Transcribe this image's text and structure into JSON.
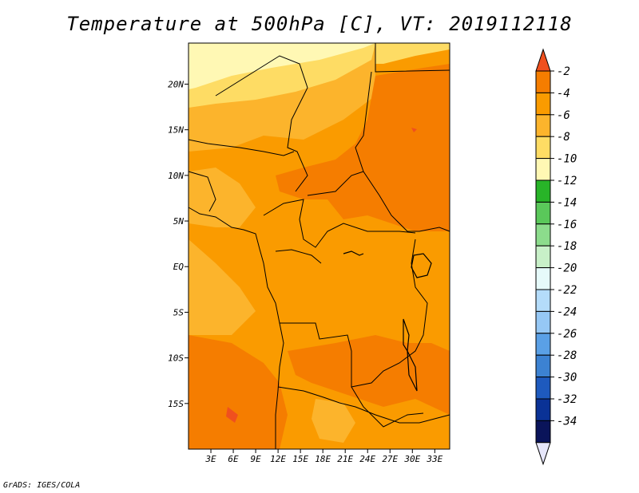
{
  "title": "Temperature at 500hPa [C], VT: 2019112118",
  "credit": "GrADS: IGES/COLA",
  "map": {
    "lon_range": [
      0,
      35
    ],
    "lat_range": [
      -20,
      24.5
    ],
    "lat_ticks": [
      {
        "value": 20,
        "label": "20N"
      },
      {
        "value": 15,
        "label": "15N"
      },
      {
        "value": 10,
        "label": "10N"
      },
      {
        "value": 5,
        "label": "5N"
      },
      {
        "value": 0,
        "label": "EQ"
      },
      {
        "value": -5,
        "label": "5S"
      },
      {
        "value": -10,
        "label": "10S"
      },
      {
        "value": -15,
        "label": "15S"
      }
    ],
    "lon_ticks": [
      {
        "value": 3,
        "label": "3E"
      },
      {
        "value": 6,
        "label": "6E"
      },
      {
        "value": 9,
        "label": "9E"
      },
      {
        "value": 12,
        "label": "12E"
      },
      {
        "value": 15,
        "label": "15E"
      },
      {
        "value": 18,
        "label": "18E"
      },
      {
        "value": 21,
        "label": "21E"
      },
      {
        "value": 24,
        "label": "24E"
      },
      {
        "value": 27,
        "label": "27E"
      },
      {
        "value": 30,
        "label": "30E"
      },
      {
        "value": 33,
        "label": "33E"
      }
    ]
  },
  "colorbar": {
    "labels": [
      "-2",
      "-4",
      "-6",
      "-8",
      "-10",
      "-12",
      "-14",
      "-16",
      "-18",
      "-20",
      "-22",
      "-24",
      "-26",
      "-28",
      "-30",
      "-32",
      "-34"
    ],
    "colors": [
      "#f0501e",
      "#f57d00",
      "#fa9b00",
      "#fcb42c",
      "#fedc64",
      "#fff8b4",
      "#28b428",
      "#5ac85a",
      "#8cdc8c",
      "#c8f0c8",
      "#e6fafa",
      "#b4dcfa",
      "#96c8f5",
      "#5aa0e6",
      "#3c82d2",
      "#1e5abe",
      "#0a3296",
      "#0a145a",
      "#e6e6fa"
    ]
  }
}
